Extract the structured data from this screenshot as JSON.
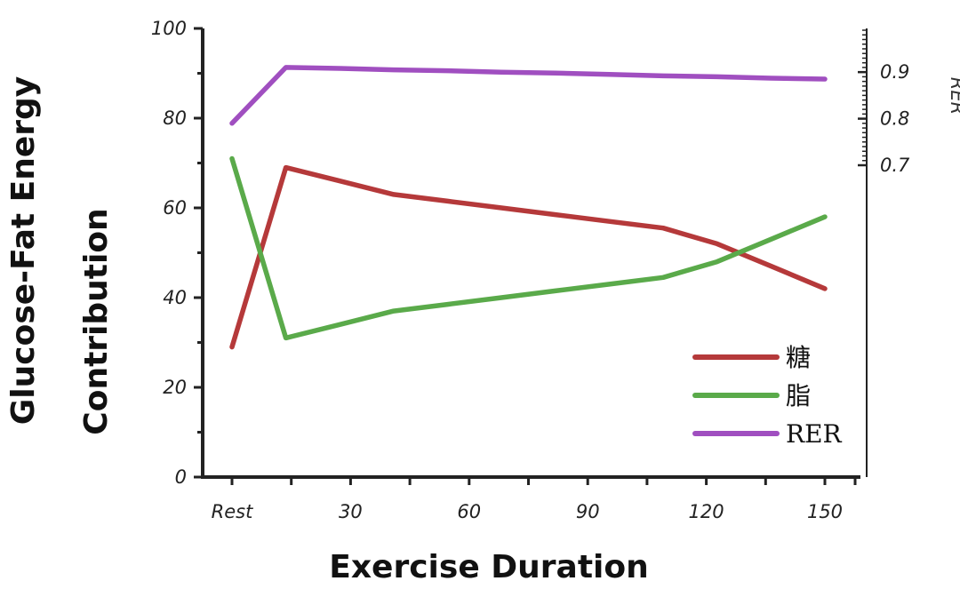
{
  "chart_data": {
    "type": "line",
    "xlabel": "Exercise Duration",
    "ylabel_lines": [
      "Glucose-Fat Energy",
      "Contribution"
    ],
    "y2label": "RER",
    "xticks": [
      "Rest",
      "",
      "30",
      "",
      "60",
      "",
      "90",
      "",
      "120",
      "",
      "150"
    ],
    "xlim": [
      -15,
      150
    ],
    "ylim": [
      0,
      100
    ],
    "yticks": [
      0,
      20,
      40,
      60,
      80,
      100
    ],
    "y2ticks": [
      0.7,
      0.8,
      0.9
    ],
    "y2lim": [
      0.7,
      0.99
    ],
    "legend_position": "bottom-right",
    "grid": false,
    "series": [
      {
        "name": "糖",
        "axis": "left",
        "color": "#b5393a",
        "x": [
          -15,
          0,
          15,
          30,
          45,
          60,
          75,
          90,
          105,
          120,
          135,
          150
        ],
        "y": [
          29,
          69,
          66,
          63,
          61.5,
          60,
          58.5,
          57,
          55.5,
          52,
          47,
          42
        ]
      },
      {
        "name": "脂",
        "axis": "left",
        "color": "#5aaa4a",
        "x": [
          -15,
          0,
          15,
          30,
          45,
          60,
          75,
          90,
          105,
          120,
          135,
          150
        ],
        "y": [
          71,
          31,
          34,
          37,
          38.5,
          40,
          41.5,
          43,
          44.5,
          48,
          53,
          58
        ]
      },
      {
        "name": "RER",
        "axis": "right",
        "color": "#a04fc0",
        "x": [
          -15,
          0,
          15,
          30,
          45,
          60,
          75,
          90,
          105,
          120,
          135,
          150
        ],
        "y": [
          0.79,
          0.91,
          0.908,
          0.905,
          0.903,
          0.9,
          0.898,
          0.895,
          0.892,
          0.89,
          0.887,
          0.885
        ]
      }
    ]
  }
}
